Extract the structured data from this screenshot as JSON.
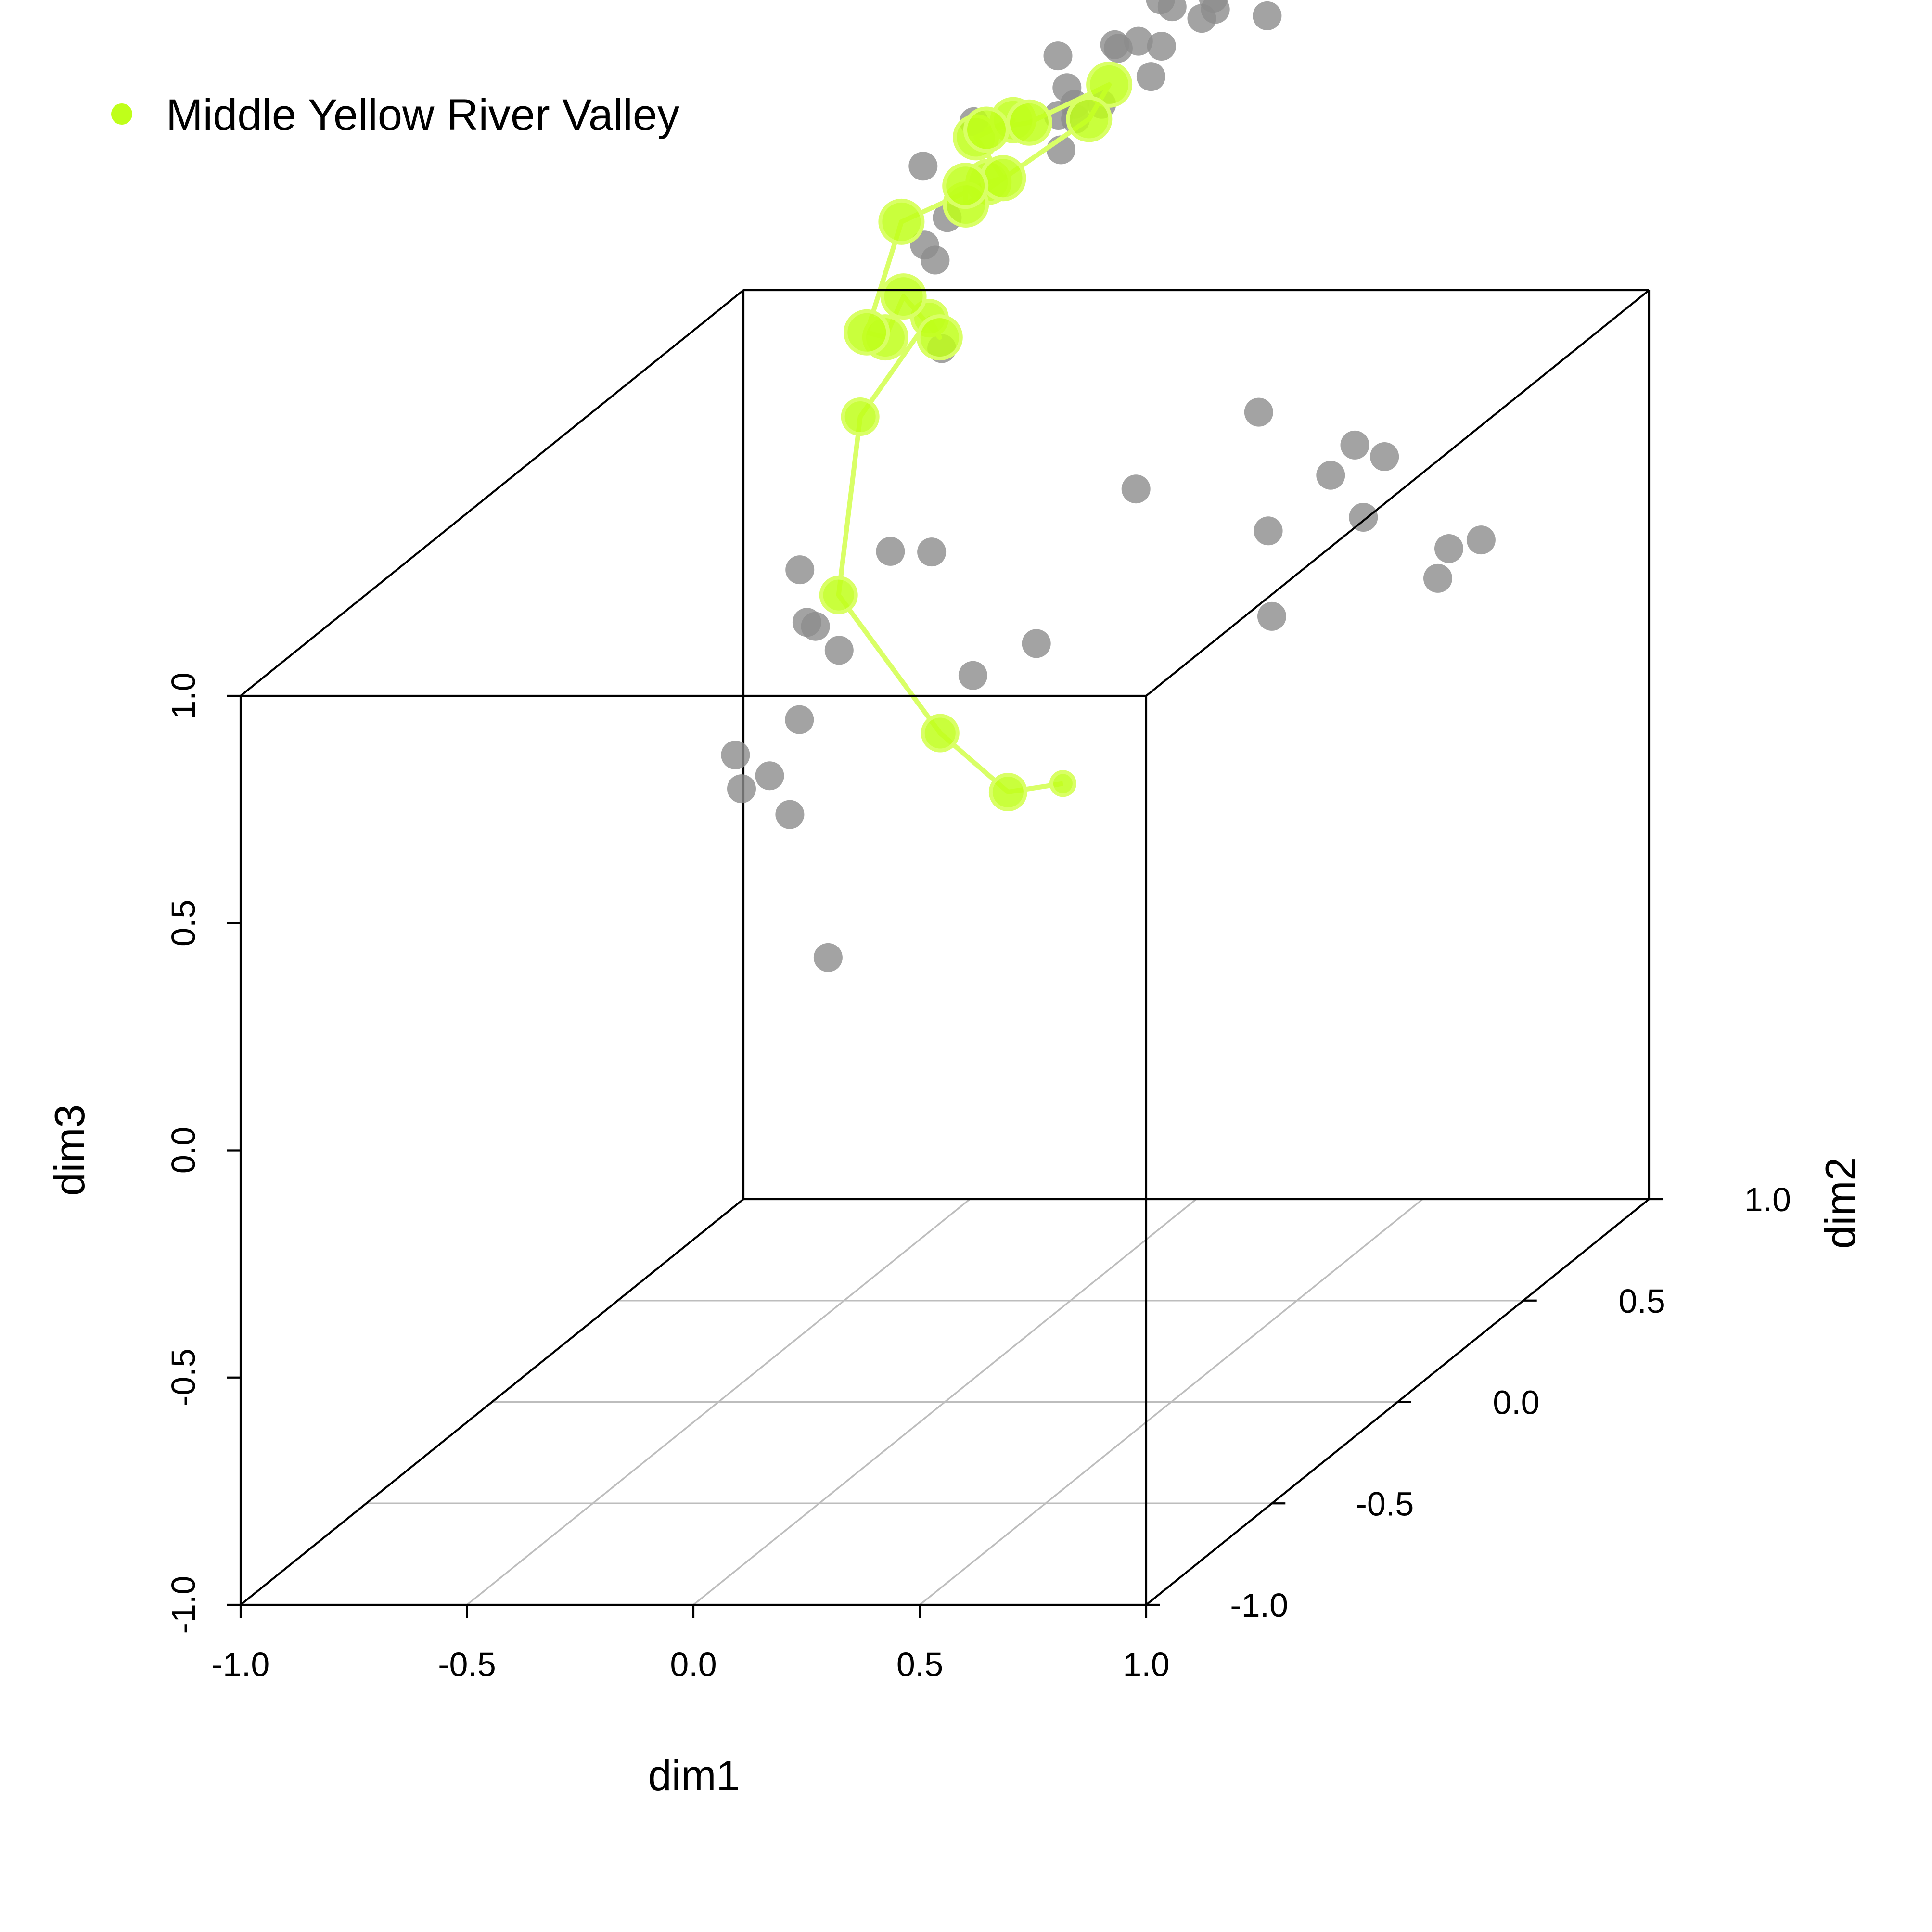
{
  "legend": {
    "label": "Middle Yellow River Valley",
    "color": "#bfff1a"
  },
  "colors": {
    "highlight": "#bfff1a",
    "highlight_line": "#d9ff66",
    "background_points": "#8c8c8c",
    "dark_points": "#4a4a4a"
  },
  "chart_data": {
    "type": "scatter",
    "projection": "3d-box",
    "title": "",
    "xlabel": "dim1",
    "ylabel": "dim2",
    "zlabel": "dim3",
    "xlim": [
      -1.0,
      1.0
    ],
    "ylim": [
      -1.0,
      1.0
    ],
    "zlim": [
      -1.0,
      1.0
    ],
    "x_ticks": [
      "-1.0",
      "-0.5",
      "0.0",
      "0.5",
      "1.0"
    ],
    "y_ticks": [
      "-1.0",
      "-0.5",
      "0.0",
      "0.5",
      "1.0"
    ],
    "z_ticks": [
      "-1.0",
      "-0.5",
      "0.0",
      "0.5",
      "1.0"
    ],
    "grid": "floor (dim1 x dim2 plane)",
    "legend_position": "top-left",
    "series": [
      {
        "name": "Middle Yellow River Valley",
        "connected": true,
        "points": [
          [
            -0.25,
            0.92,
            -0.05
          ],
          [
            -0.46,
            1.08,
            -0.14
          ],
          [
            -0.51,
            0.9,
            0.07
          ],
          [
            -0.54,
            0.55,
            0.53
          ],
          [
            -0.52,
            0.6,
            0.9
          ],
          [
            -0.45,
            0.75,
            1.05
          ],
          [
            -0.4,
            0.7,
            1.03
          ],
          [
            -0.48,
            0.7,
            1.12
          ],
          [
            -0.52,
            0.7,
            1.03
          ],
          [
            -0.5,
            0.59,
            1.09
          ],
          [
            -0.44,
            0.62,
            1.32
          ],
          [
            -0.32,
            0.75,
            1.35
          ],
          [
            -0.36,
            0.88,
            1.3
          ],
          [
            -0.37,
            0.79,
            1.43
          ],
          [
            -0.31,
            0.83,
            1.45
          ],
          [
            -0.38,
            0.85,
            1.42
          ],
          [
            -0.33,
            0.93,
            1.4
          ],
          [
            -0.17,
            0.96,
            1.47
          ],
          [
            -0.17,
            0.88,
            1.43
          ],
          [
            -0.37,
            0.75,
            1.3
          ],
          [
            -0.36,
            0.73,
            1.35
          ]
        ]
      },
      {
        "name": "",
        "points": [
          [
            -0.2,
            0.88,
            1.43
          ],
          [
            -0.3,
            0.99,
            1.52
          ],
          [
            -0.15,
            0.96,
            1.55
          ],
          [
            -0.15,
            1.04,
            1.53
          ],
          [
            -0.23,
            1.09,
            1.5
          ],
          [
            -0.06,
            1.13,
            1.54
          ],
          [
            -0.03,
            1.13,
            1.56
          ],
          [
            -0.26,
            0.92,
            1.42
          ],
          [
            -0.28,
            0.99,
            1.45
          ],
          [
            -0.4,
            0.73,
            1.28
          ],
          [
            -0.47,
            0.76,
            1.38
          ],
          [
            -0.38,
            0.8,
            1.46
          ],
          [
            -0.23,
            0.93,
            1.44
          ],
          [
            -0.11,
            1.06,
            1.51
          ],
          [
            -0.1,
            1.0,
            1.47
          ],
          [
            -0.34,
            0.6,
            1.05
          ],
          [
            -0.62,
            0.54,
            0.59
          ],
          [
            -0.61,
            0.55,
            0.47
          ],
          [
            -0.16,
            0.4,
            0.42
          ],
          [
            -0.07,
            0.49,
            0.45
          ],
          [
            -0.72,
            0.6,
            0.11
          ],
          [
            -0.4,
            0.64,
            1.26
          ],
          [
            -0.41,
            0.7,
            1.2
          ],
          [
            -0.04,
            1.14,
            1.58
          ],
          [
            -0.12,
            1.12,
            1.57
          ],
          [
            -0.14,
            1.11,
            1.59
          ],
          [
            0.09,
            1.12,
            1.55
          ],
          [
            -0.22,
            1.02,
            1.4
          ],
          [
            -0.26,
            0.93,
            1.34
          ],
          [
            -0.56,
            0.2,
            0.26
          ],
          [
            -0.47,
            0.23,
            0.19
          ],
          [
            -0.28,
            0.04,
            -0.04
          ],
          [
            0.1,
            0.58,
            0.75
          ],
          [
            0.42,
            0.53,
            0.68
          ],
          [
            -0.58,
            0.53,
            0.47
          ],
          [
            0.36,
            0.6,
            0.91
          ],
          [
            0.6,
            0.55,
            0.86
          ],
          [
            0.66,
            0.56,
            0.83
          ],
          [
            -0.4,
            0.3,
            0.52
          ],
          [
            0.5,
            0.4,
            0.55
          ],
          [
            0.48,
            0.67,
            0.74
          ],
          [
            -0.36,
            0.07,
            0.47
          ],
          [
            0.75,
            0.61,
            0.54
          ],
          [
            -0.84,
            0.68,
            0.12
          ],
          [
            -0.44,
            0.74,
            0.54
          ],
          [
            0.78,
            0.6,
            0.61
          ],
          [
            0.63,
            0.53,
            0.71
          ],
          [
            -0.57,
            0.81,
            0.51
          ],
          [
            0.84,
            0.62,
            0.62
          ]
        ]
      }
    ]
  }
}
